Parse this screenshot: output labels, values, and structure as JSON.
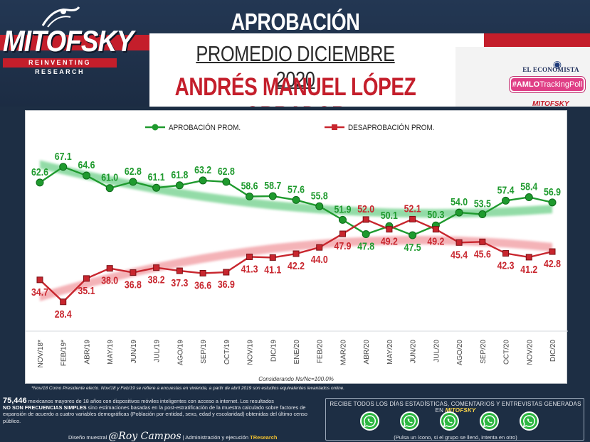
{
  "header": {
    "brand": "MITOFSKY",
    "brand_tagline": "REINVENTING RESEARCH",
    "title_line1": "APROBACIÓN PRESIDENCIAL",
    "title_line2": "PROMEDIO DICIEMBRE 2020",
    "title_line3": "ANDRÉS MANUEL LÓPEZ OBRADOR",
    "partner": "EL ECONOMISTA",
    "hashtag_prefix": "#AMLO",
    "hashtag_suffix": "TrackingPoll",
    "small_brand": "MITOFSKY"
  },
  "chart_data": {
    "type": "line",
    "categories": [
      "NOV/18*",
      "FEB/19*",
      "ABR/19",
      "MAY/19",
      "JUN/19",
      "JUL/19",
      "AGO/19",
      "SEP/19",
      "OCT/19",
      "NOV/19",
      "DIC/19",
      "ENE/20",
      "FEB/20",
      "MAR/20",
      "ABR/20",
      "MAY/20",
      "JUN/20",
      "JUL/20",
      "AGO/20",
      "SEP/20",
      "OCT/20",
      "NOV/20",
      "DIC/20"
    ],
    "series": [
      {
        "name": "APROBACIÓN PROM.",
        "color": "#1f9a2e",
        "values": [
          62.6,
          67.1,
          64.6,
          61.0,
          62.8,
          61.1,
          61.8,
          63.2,
          62.8,
          58.6,
          58.7,
          57.6,
          55.8,
          51.9,
          47.8,
          50.1,
          47.5,
          50.3,
          54.0,
          53.5,
          57.4,
          58.4,
          56.9
        ],
        "labels": [
          "62.6",
          "67.1",
          "64.6",
          "61.0",
          "62.8",
          "61.1",
          "61.8",
          "63.2",
          "62.8",
          "58.6",
          "58.7",
          "57.6",
          "55.8",
          "51.9",
          "47.8",
          "50.1",
          "47.5",
          "50.3",
          "54.0",
          "53.5",
          "57.4",
          "58.4",
          "56.9"
        ]
      },
      {
        "name": "DESAPROBACIÓN PROM.",
        "color": "#c8262e",
        "values": [
          34.7,
          28.4,
          35.1,
          38.0,
          36.8,
          38.2,
          37.3,
          36.6,
          36.9,
          41.3,
          41.1,
          42.2,
          44.0,
          47.9,
          52.0,
          49.2,
          52.1,
          49.2,
          45.4,
          45.6,
          42.3,
          41.2,
          42.8
        ],
        "labels": [
          "34.7",
          "28.4",
          "35.1",
          "38.0",
          "36.8",
          "38.2",
          "37.3",
          "36.6",
          "36.9",
          "41.3",
          "41.1",
          "42.2",
          "44.0",
          "47.9",
          "52.0",
          "49.2",
          "52.1",
          "49.2",
          "45.4",
          "45.6",
          "42.3",
          "41.2",
          "42.8"
        ]
      }
    ],
    "ylim": [
      20,
      75
    ],
    "grid": false,
    "legend": "top-center",
    "note": "Considerando   Ns/Nc=100.0%"
  },
  "footnote": "*Nov/18 Como Presidente electo.  Nov/18 y Feb/19 se refiere a encuestas en vivienda, a partir de abril 2019 son estudios equivalentes levantados online.",
  "methodology": {
    "count": "75,446",
    "text1": " mexicanos mayores de 18 años con dispositivos móviles inteligentes con acceso a internet. Los resultados",
    "bold": "NO SON FRECUENCIAS SIMPLES",
    "text2": " sino estimaciones basadas en la post-estratificación de la muestra calculado sobre factores de expansión de acuerdo a cuatro variables demográficas (Población por entidad, sexo, edad y escolaridad) obtenidas del último censo público."
  },
  "credits": {
    "design": "Diseño muestral",
    "signature": "@Roy Campos",
    "admin": "| Administración y ejecución",
    "company": "TResearch"
  },
  "whatsapp": {
    "title": "RECIBE TODOS  LOS DÍAS ESTADÍSTICAS, COMENTARIOS Y ENTREVISTAS GENERADAS EN ",
    "title_brand": "MITOFSKY",
    "note": "(Pulsa un ícono,  si el grupo se llenó, intenta en otro)",
    "icons": [
      "whatsapp-icon",
      "whatsapp-icon",
      "whatsapp-icon",
      "whatsapp-icon",
      "whatsapp-icon"
    ]
  }
}
